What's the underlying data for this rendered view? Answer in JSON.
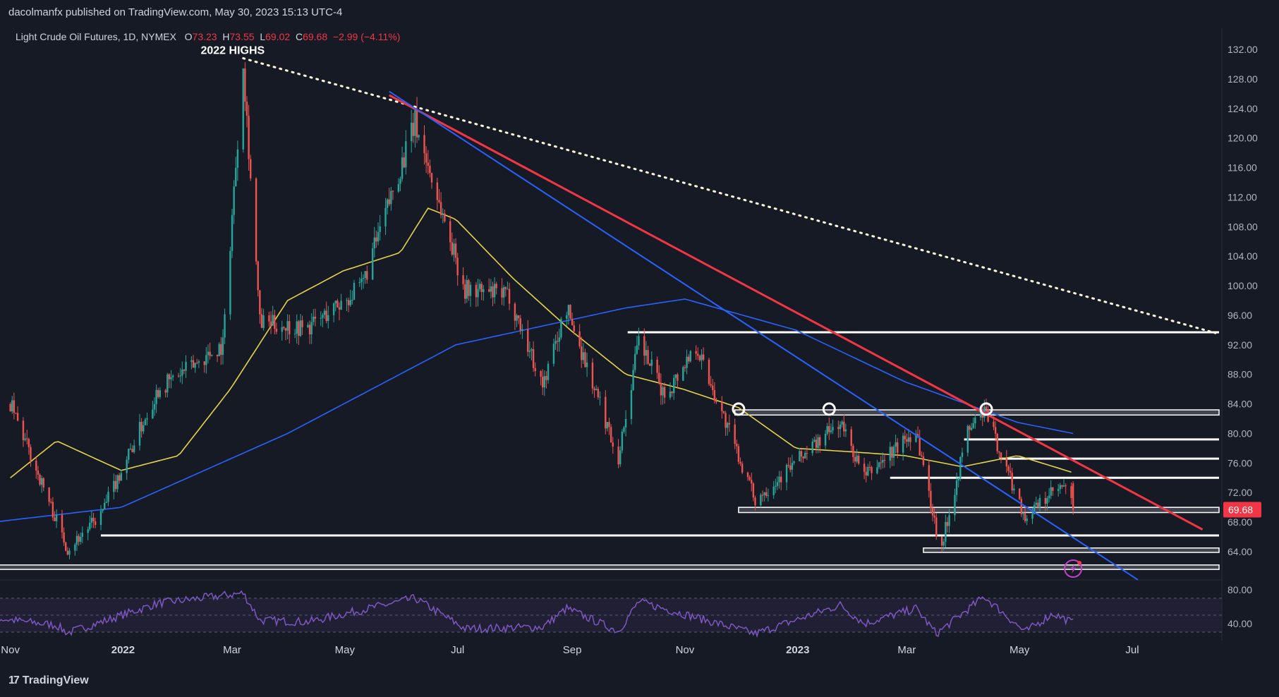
{
  "header": {
    "publisher_text": "dacolmanfx published on TradingView.com, May 30, 2023 15:13 UTC-4"
  },
  "legend": {
    "symbol": "Light Crude Oil Futures, 1D, NYMEX",
    "o_label": "O",
    "open": "73.23",
    "h_label": "H",
    "high": "73.55",
    "l_label": "L",
    "low": "69.02",
    "c_label": "C",
    "close": "69.68",
    "change": "−2.99 (−4.11%)"
  },
  "annotation": {
    "highs_label": "2022 HIGHS"
  },
  "last_price_badge": "69.68",
  "footer": {
    "brand": "TradingView",
    "logo_glyph": "17"
  },
  "colors": {
    "background": "#161a25",
    "up": "#26a69a",
    "down": "#ef5350",
    "sma50": "#e6d34a",
    "sma200": "#2962ff",
    "red_trendline": "#f23645",
    "blue_trendline": "#2962ff",
    "level_lines": "#ffffff",
    "rsi": "#7e57c2",
    "rsi_band": "#2a2540"
  },
  "chart_data": {
    "type": "candlestick",
    "title": "Light Crude Oil Futures, 1D, NYMEX",
    "y_axis": {
      "ticks": [
        "132.00",
        "128.00",
        "124.00",
        "120.00",
        "116.00",
        "112.00",
        "108.00",
        "104.00",
        "100.00",
        "96.00",
        "92.00",
        "88.00",
        "84.00",
        "80.00",
        "76.00",
        "72.00",
        "68.00",
        "64.00"
      ],
      "range": [
        60,
        134
      ]
    },
    "x_axis": {
      "ticks": [
        "Nov",
        "2022",
        "Mar",
        "May",
        "Jul",
        "Sep",
        "Nov",
        "2023",
        "Mar",
        "May",
        "Jul"
      ]
    },
    "price_path_key_points": [
      {
        "date": "2021-11-01",
        "value": 84.0
      },
      {
        "date": "2021-11-26",
        "value": 68.2
      },
      {
        "date": "2021-12-02",
        "value": 64.4
      },
      {
        "date": "2021-12-20",
        "value": 69.0
      },
      {
        "date": "2022-01-20",
        "value": 86.0
      },
      {
        "date": "2022-02-24",
        "value": 92.0
      },
      {
        "date": "2022-03-07",
        "value": 130.5
      },
      {
        "date": "2022-03-16",
        "value": 95.0
      },
      {
        "date": "2022-04-11",
        "value": 94.3
      },
      {
        "date": "2022-05-10",
        "value": 99.8
      },
      {
        "date": "2022-06-08",
        "value": 122.1
      },
      {
        "date": "2022-07-05",
        "value": 99.5
      },
      {
        "date": "2022-07-29",
        "value": 98.6
      },
      {
        "date": "2022-08-16",
        "value": 86.5
      },
      {
        "date": "2022-08-29",
        "value": 97.0
      },
      {
        "date": "2022-09-26",
        "value": 76.7
      },
      {
        "date": "2022-10-07",
        "value": 92.6
      },
      {
        "date": "2022-10-21",
        "value": 85.0
      },
      {
        "date": "2022-11-07",
        "value": 92.0
      },
      {
        "date": "2022-12-09",
        "value": 71.0
      },
      {
        "date": "2023-01-03",
        "value": 76.9
      },
      {
        "date": "2023-01-24",
        "value": 81.5
      },
      {
        "date": "2023-02-06",
        "value": 74.1
      },
      {
        "date": "2023-03-06",
        "value": 80.5
      },
      {
        "date": "2023-03-17",
        "value": 66.9
      },
      {
        "date": "2023-03-20",
        "value": 64.9
      },
      {
        "date": "2023-04-03",
        "value": 80.4
      },
      {
        "date": "2023-04-12",
        "value": 83.2
      },
      {
        "date": "2023-05-04",
        "value": 68.6
      },
      {
        "date": "2023-05-19",
        "value": 72.0
      },
      {
        "date": "2023-05-26",
        "value": 72.7
      },
      {
        "date": "2023-05-30",
        "value": 69.68
      }
    ],
    "last_candle": {
      "open": 73.23,
      "high": 73.55,
      "low": 69.02,
      "close": 69.68
    },
    "horizontal_levels": [
      {
        "from": "2022-10-01",
        "value": 93.7
      },
      {
        "from": "2022-11-28",
        "value": 83.2,
        "type": "zone",
        "to_value": 82.5
      },
      {
        "from": "2023-04-01",
        "value": 79.2
      },
      {
        "from": "2023-04-20",
        "value": 76.6
      },
      {
        "from": "2023-02-20",
        "value": 74.0
      },
      {
        "from": "2022-11-30",
        "value": 70.0,
        "type": "zone",
        "to_value": 69.3
      },
      {
        "from": "2021-12-20",
        "value": 66.2
      },
      {
        "from": "2023-03-10",
        "value": 64.5,
        "type": "zone",
        "to_value": 63.9
      },
      {
        "from": "2021-09-01",
        "value": 62.2,
        "type": "zone",
        "to_value": 61.6
      }
    ],
    "trendlines": [
      {
        "name": "dotted",
        "from": {
          "date": "2022-03-07",
          "value": 130.8
        },
        "to": {
          "date": "2023-08-15",
          "value": 93.6
        }
      },
      {
        "name": "red",
        "from": {
          "date": "2022-05-25",
          "value": 125.8
        },
        "to": {
          "date": "2023-08-08",
          "value": 67.0
        }
      },
      {
        "name": "blue",
        "from": {
          "date": "2022-05-25",
          "value": 126.3
        },
        "to": {
          "date": "2023-07-04",
          "value": 60.2
        }
      }
    ],
    "touch_markers": [
      {
        "date": "2022-11-30",
        "value": 83.3
      },
      {
        "date": "2023-01-18",
        "value": 83.3
      },
      {
        "date": "2023-04-13",
        "value": 83.3
      }
    ],
    "sma50_key_points": [
      {
        "date": "2021-11-01",
        "value": 74.0
      },
      {
        "date": "2021-11-26",
        "value": 79.0
      },
      {
        "date": "2021-12-31",
        "value": 75.0
      },
      {
        "date": "2022-01-31",
        "value": 77.0
      },
      {
        "date": "2022-02-28",
        "value": 86.0
      },
      {
        "date": "2022-03-31",
        "value": 98.0
      },
      {
        "date": "2022-04-30",
        "value": 102.0
      },
      {
        "date": "2022-05-31",
        "value": 104.5
      },
      {
        "date": "2022-06-15",
        "value": 110.5
      },
      {
        "date": "2022-06-30",
        "value": 109.0
      },
      {
        "date": "2022-07-31",
        "value": 101.0
      },
      {
        "date": "2022-08-31",
        "value": 94.0
      },
      {
        "date": "2022-09-30",
        "value": 88.0
      },
      {
        "date": "2022-10-31",
        "value": 86.0
      },
      {
        "date": "2022-11-30",
        "value": 83.5
      },
      {
        "date": "2022-12-31",
        "value": 78.0
      },
      {
        "date": "2023-01-31",
        "value": 77.5
      },
      {
        "date": "2023-02-28",
        "value": 77.0
      },
      {
        "date": "2023-03-31",
        "value": 75.5
      },
      {
        "date": "2023-04-30",
        "value": 77.0
      },
      {
        "date": "2023-05-30",
        "value": 74.7
      }
    ],
    "sma200_key_points": [
      {
        "date": "2021-09-01",
        "value": 66.5
      },
      {
        "date": "2021-12-31",
        "value": 70.0
      },
      {
        "date": "2022-03-31",
        "value": 80.0
      },
      {
        "date": "2022-06-30",
        "value": 92.0
      },
      {
        "date": "2022-09-30",
        "value": 97.0
      },
      {
        "date": "2022-11-01",
        "value": 98.2
      },
      {
        "date": "2022-12-31",
        "value": 94.0
      },
      {
        "date": "2023-02-28",
        "value": 87.0
      },
      {
        "date": "2023-04-30",
        "value": 81.5
      },
      {
        "date": "2023-05-30",
        "value": 80.0
      }
    ],
    "rsi": {
      "ticks": [
        "80.00",
        "40.00"
      ],
      "range": [
        20,
        100
      ],
      "band": [
        30,
        70
      ],
      "key_points": [
        {
          "date": "2021-09-01",
          "value": 60
        },
        {
          "date": "2021-11-26",
          "value": 38
        },
        {
          "date": "2021-12-02",
          "value": 29
        },
        {
          "date": "2022-01-20",
          "value": 64
        },
        {
          "date": "2022-03-07",
          "value": 76
        },
        {
          "date": "2022-03-16",
          "value": 44
        },
        {
          "date": "2022-04-11",
          "value": 42
        },
        {
          "date": "2022-06-08",
          "value": 70
        },
        {
          "date": "2022-07-05",
          "value": 34
        },
        {
          "date": "2022-08-16",
          "value": 36
        },
        {
          "date": "2022-08-29",
          "value": 58
        },
        {
          "date": "2022-09-26",
          "value": 31
        },
        {
          "date": "2022-10-07",
          "value": 66
        },
        {
          "date": "2022-12-09",
          "value": 28
        },
        {
          "date": "2023-01-24",
          "value": 62
        },
        {
          "date": "2023-02-06",
          "value": 40
        },
        {
          "date": "2023-03-06",
          "value": 58
        },
        {
          "date": "2023-03-17",
          "value": 28
        },
        {
          "date": "2023-04-12",
          "value": 72
        },
        {
          "date": "2023-05-04",
          "value": 30
        },
        {
          "date": "2023-05-19",
          "value": 52
        },
        {
          "date": "2023-05-30",
          "value": 41
        }
      ]
    }
  }
}
